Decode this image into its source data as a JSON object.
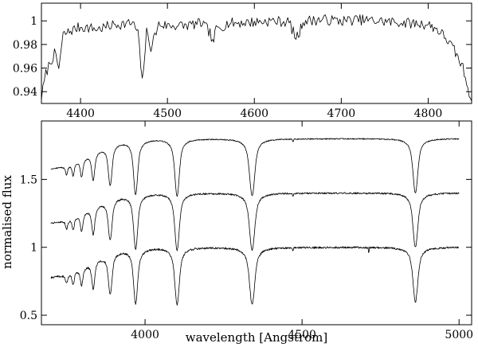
{
  "chart_data": [
    {
      "type": "line",
      "panel": "top",
      "title": "",
      "xlabel": "",
      "ylabel": "",
      "xlim": [
        4355,
        4850
      ],
      "ylim": [
        0.93,
        1.015
      ],
      "x_ticks": [
        4400,
        4500,
        4600,
        4700,
        4800
      ],
      "x_tick_labels": [
        "4400",
        "4500",
        "4600",
        "4700",
        "4800"
      ],
      "y_ticks": [
        0.94,
        0.96,
        0.98,
        1.0
      ],
      "y_tick_labels": [
        "0.94",
        "0.96",
        "0.98",
        "1"
      ],
      "grid": false,
      "series": [
        {
          "x": [
            4355,
            4360,
            4365,
            4370,
            4375,
            4380,
            4390,
            4400,
            4420,
            4440,
            4460,
            4466,
            4471,
            4476,
            4481,
            4490,
            4500,
            4520,
            4540,
            4549,
            4552,
            4556,
            4570,
            4600,
            4620,
            4640,
            4648,
            4652,
            4656,
            4680,
            4700,
            4720,
            4740,
            4760,
            4780,
            4800,
            4810,
            4820,
            4830,
            4840,
            4850
          ],
          "values": [
            0.935,
            0.955,
            0.965,
            0.972,
            0.96,
            0.988,
            0.992,
            0.995,
            0.993,
            0.997,
            0.998,
            0.99,
            0.948,
            0.99,
            0.978,
            0.997,
            0.996,
            0.996,
            0.998,
            0.99,
            0.98,
            0.993,
            0.998,
            0.999,
            1.0,
            0.999,
            0.985,
            0.99,
            1.0,
            1.001,
            1.0,
            1.001,
            1.0,
            0.999,
            0.998,
            0.997,
            0.993,
            0.986,
            0.975,
            0.96,
            0.932
          ]
        }
      ]
    },
    {
      "type": "line",
      "panel": "bottom",
      "title": "",
      "xlabel": "wavelength [Angstrom]",
      "ylabel": "normalised flux",
      "xlim": [
        3670,
        5040
      ],
      "ylim": [
        0.43,
        1.93
      ],
      "x_ticks": [
        4000,
        4500,
        5000
      ],
      "x_tick_labels": [
        "4000",
        "4500",
        "5000"
      ],
      "y_ticks": [
        0.5,
        1.0,
        1.5
      ],
      "y_tick_labels": [
        "0.5",
        "1",
        "1.5"
      ],
      "grid": false,
      "x_range": [
        3700,
        5000
      ],
      "line_centers": [
        3750,
        3771,
        3798,
        3835,
        3889,
        3970,
        4102,
        4341,
        4861
      ],
      "series": [
        {
          "offset": 0.8,
          "noise": 0.004
        },
        {
          "offset": 0.4,
          "noise": 0.006
        },
        {
          "offset": 0.0,
          "noise": 0.007
        }
      ],
      "continuum": [
        {
          "x": 3700,
          "y": 0.78
        },
        {
          "x": 3750,
          "y": 0.8
        },
        {
          "x": 3800,
          "y": 0.86
        },
        {
          "x": 3850,
          "y": 0.92
        },
        {
          "x": 3900,
          "y": 0.97
        },
        {
          "x": 3960,
          "y": 0.99
        },
        {
          "x": 4050,
          "y": 1.0
        },
        {
          "x": 5000,
          "y": 1.0
        }
      ],
      "absorption_lines": [
        {
          "center": 3750,
          "depth": 0.06,
          "width": 5
        },
        {
          "center": 3771,
          "depth": 0.09,
          "width": 6
        },
        {
          "center": 3798,
          "depth": 0.13,
          "width": 7
        },
        {
          "center": 3835,
          "depth": 0.2,
          "width": 8
        },
        {
          "center": 3889,
          "depth": 0.3,
          "width": 10
        },
        {
          "center": 3970,
          "depth": 0.4,
          "width": 11
        },
        {
          "center": 4102,
          "depth": 0.42,
          "width": 12
        },
        {
          "center": 4341,
          "depth": 0.42,
          "width": 14
        },
        {
          "center": 4471,
          "depth": 0.02,
          "width": 2
        },
        {
          "center": 4861,
          "depth": 0.4,
          "width": 13
        }
      ]
    }
  ]
}
